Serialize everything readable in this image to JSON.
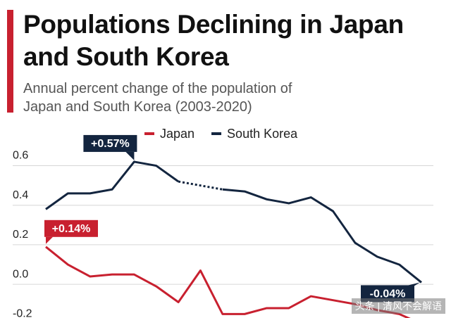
{
  "chart_data": {
    "type": "line",
    "title": "Populations Declining in Japan and South Korea",
    "subtitle": "Annual percent change of the population of Japan and South Korea (2003-2020)",
    "categories": [
      null,
      null,
      null,
      null,
      null,
      null,
      null,
      null,
      null,
      null,
      null,
      null,
      null,
      null,
      null,
      null,
      null,
      null
    ],
    "series": [
      {
        "name": "Japan",
        "color": "#c8202f",
        "values": [
          0.14,
          0.05,
          -0.01,
          0.0,
          0.0,
          -0.06,
          -0.14,
          0.02,
          -0.2,
          -0.2,
          -0.17,
          -0.17,
          -0.11,
          -0.13,
          -0.15,
          -0.18,
          -0.2,
          -0.25
        ],
        "value_labels": [
          "+0.14%",
          null,
          null,
          null,
          null,
          null,
          null,
          null,
          null,
          null,
          null,
          null,
          null,
          null,
          null,
          null,
          null,
          null
        ]
      },
      {
        "name": "South Korea",
        "color": "#13253f",
        "values": [
          0.33,
          0.41,
          0.41,
          0.43,
          0.57,
          0.55,
          0.47,
          null,
          0.43,
          0.42,
          0.38,
          0.36,
          0.39,
          0.32,
          0.16,
          0.09,
          0.05,
          -0.04
        ],
        "value_labels": [
          null,
          null,
          null,
          null,
          "+0.57%",
          null,
          null,
          null,
          null,
          null,
          null,
          null,
          null,
          null,
          null,
          null,
          null,
          "-0.04%"
        ]
      }
    ],
    "ylim": [
      -0.22,
      0.68
    ],
    "yticks": [
      {
        "value": -0.2,
        "label": "-0.2"
      },
      {
        "value": 0,
        "label": "0.0"
      },
      0.2,
      0.4,
      0.6
    ],
    "grid": true,
    "legend": "top",
    "watermark": "头条 | 清风不会解语"
  }
}
